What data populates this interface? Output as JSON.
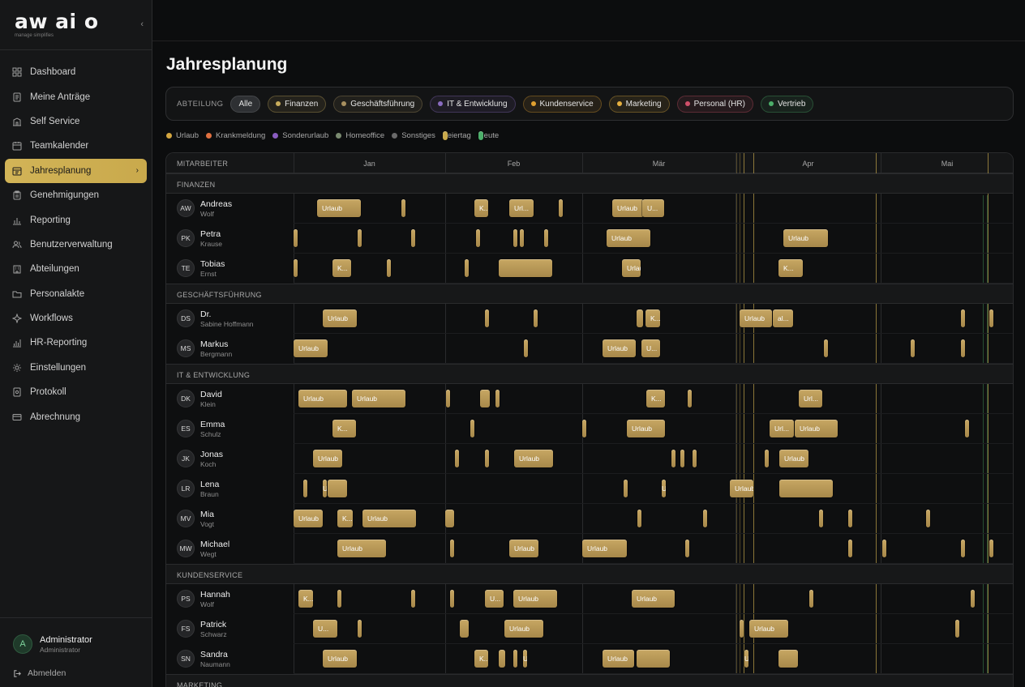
{
  "brand": {
    "logo": "aw ai o",
    "tagline": "manage simplifies"
  },
  "sidebar": {
    "items": [
      {
        "label": "Dashboard",
        "icon": "grid-icon"
      },
      {
        "label": "Meine Anträge",
        "icon": "document-icon"
      },
      {
        "label": "Self Service",
        "icon": "building-icon"
      },
      {
        "label": "Teamkalender",
        "icon": "calendar-icon"
      },
      {
        "label": "Jahresplanung",
        "icon": "calendar-check-icon",
        "active": true
      },
      {
        "label": "Genehmigungen",
        "icon": "clipboard-icon"
      },
      {
        "label": "Reporting",
        "icon": "bar-chart-icon"
      },
      {
        "label": "Benutzerverwaltung",
        "icon": "users-icon"
      },
      {
        "label": "Abteilungen",
        "icon": "office-icon"
      },
      {
        "label": "Personalakte",
        "icon": "folder-icon"
      },
      {
        "label": "Workflows",
        "icon": "workflow-icon"
      },
      {
        "label": "HR-Reporting",
        "icon": "chart-icon"
      },
      {
        "label": "Einstellungen",
        "icon": "gear-icon"
      },
      {
        "label": "Protokoll",
        "icon": "log-icon"
      },
      {
        "label": "Abrechnung",
        "icon": "card-icon"
      }
    ]
  },
  "user": {
    "initial": "A",
    "name": "Administrator",
    "role": "Administrator",
    "logout": "Abmelden"
  },
  "page": {
    "title": "Jahresplanung"
  },
  "filters": {
    "label": "ABTEILUNG",
    "chips": [
      {
        "label": "Alle",
        "color": null
      },
      {
        "label": "Finanzen",
        "color": "#c9ad5c"
      },
      {
        "label": "Geschäftsführung",
        "color": "#a89060"
      },
      {
        "label": "IT & Entwicklung",
        "color": "#8a6cc0"
      },
      {
        "label": "Kundenservice",
        "color": "#e0a030"
      },
      {
        "label": "Marketing",
        "color": "#e6b040"
      },
      {
        "label": "Personal (HR)",
        "color": "#d0506a"
      },
      {
        "label": "Vertrieb",
        "color": "#4caf6a"
      }
    ]
  },
  "legend": [
    {
      "label": "Urlaub",
      "color": "#d4a640",
      "kind": "dot"
    },
    {
      "label": "Krankmeldung",
      "color": "#e07040",
      "kind": "dot"
    },
    {
      "label": "Sonderurlaub",
      "color": "#8a5cc0",
      "kind": "dot"
    },
    {
      "label": "Homeoffice",
      "color": "#7a8a70",
      "kind": "dot"
    },
    {
      "label": "Sonstiges",
      "color": "#6a6a6a",
      "kind": "dot"
    },
    {
      "label": "Feiertag",
      "color": "#c9a94c",
      "kind": "bar"
    },
    {
      "label": "Heute",
      "color": "#4caf6a",
      "kind": "bar"
    }
  ],
  "grid": {
    "employee_header": "MITARBEITER",
    "months": [
      "Jan",
      "Feb",
      "Mär",
      "Apr",
      "Mai"
    ],
    "groups": [
      {
        "dept": "FINANZEN",
        "rows": [
          {
            "initials": "AW",
            "first": "Andreas",
            "last": "Wolf",
            "bars": [
              {
                "l": "Urlaub"
              },
              {
                "l": ""
              },
              {
                "l": "K..."
              },
              {
                "l": "Url..."
              },
              {
                "l": ""
              },
              {
                "l": "Urlaub"
              },
              {
                "l": "U..."
              },
              {
                "l": ""
              }
            ]
          },
          {
            "initials": "PK",
            "first": "Petra",
            "last": "Krause",
            "bars": [
              {
                "l": ""
              },
              {
                "l": ""
              },
              {
                "l": ""
              },
              {
                "l": ""
              },
              {
                "l": ""
              },
              {
                "l": ""
              },
              {
                "l": ""
              },
              {
                "l": "Urlaub"
              },
              {
                "l": "Urlaub"
              }
            ]
          },
          {
            "initials": "TE",
            "first": "Tobias",
            "last": "Ernst",
            "bars": [
              {
                "l": ""
              },
              {
                "l": "K..."
              },
              {
                "l": ""
              },
              {
                "l": ""
              },
              {
                "l": ""
              },
              {
                "l": "Urlaub"
              },
              {
                "l": "K..."
              },
              {
                "l": "Url..."
              }
            ]
          }
        ]
      },
      {
        "dept": "GESCHÄFTSFÜHRUNG",
        "rows": [
          {
            "initials": "DS",
            "first": "Dr.",
            "last": "Sabine Hoffmann",
            "bars": [
              {
                "l": "Urlaub"
              },
              {
                "l": ""
              },
              {
                "l": ""
              },
              {
                "l": ""
              },
              {
                "l": "K..."
              },
              {
                "l": "Urlaub"
              },
              {
                "l": "al..."
              },
              {
                "l": ""
              },
              {
                "l": ""
              }
            ]
          },
          {
            "initials": "MS",
            "first": "Markus",
            "last": "Bergmann",
            "bars": [
              {
                "l": "Urlaub"
              },
              {
                "l": ""
              },
              {
                "l": "Urlaub"
              },
              {
                "l": "U..."
              },
              {
                "l": ""
              },
              {
                "l": ""
              },
              {
                "l": ""
              }
            ]
          }
        ]
      },
      {
        "dept": "IT & ENTWICKLUNG",
        "rows": [
          {
            "initials": "DK",
            "first": "David",
            "last": "Klein",
            "bars": [
              {
                "l": "Urlaub"
              },
              {
                "l": "Urlaub"
              },
              {
                "l": ""
              },
              {
                "l": ""
              },
              {
                "l": ""
              },
              {
                "l": "K..."
              },
              {
                "l": ""
              },
              {
                "l": "Url..."
              }
            ]
          },
          {
            "initials": "ES",
            "first": "Emma",
            "last": "Schulz",
            "bars": [
              {
                "l": "K..."
              },
              {
                "l": ""
              },
              {
                "l": ""
              },
              {
                "l": "Urlaub"
              },
              {
                "l": "Url..."
              },
              {
                "l": "Urlaub"
              },
              {
                "l": ""
              }
            ]
          },
          {
            "initials": "JK",
            "first": "Jonas",
            "last": "Koch",
            "bars": [
              {
                "l": "Urlaub"
              },
              {
                "l": ""
              },
              {
                "l": ""
              },
              {
                "l": "Urlaub"
              },
              {
                "l": ""
              },
              {
                "l": ""
              },
              {
                "l": ""
              },
              {
                "l": ""
              },
              {
                "l": "Urlaub"
              }
            ]
          },
          {
            "initials": "LR",
            "first": "Lena",
            "last": "Braun",
            "bars": [
              {
                "l": ""
              },
              {
                "l": "U..."
              },
              {
                "l": ""
              },
              {
                "l": ""
              },
              {
                "l": "Url..."
              },
              {
                "l": "Urlaub"
              },
              {
                "l": ""
              }
            ]
          },
          {
            "initials": "MV",
            "first": "Mia",
            "last": "Vogt",
            "bars": [
              {
                "l": "Urlaub"
              },
              {
                "l": "K..."
              },
              {
                "l": "Urlaub"
              },
              {
                "l": ""
              },
              {
                "l": ""
              },
              {
                "l": ""
              },
              {
                "l": ""
              },
              {
                "l": ""
              },
              {
                "l": ""
              }
            ]
          },
          {
            "initials": "MW",
            "first": "Michael",
            "last": "Wegt",
            "bars": [
              {
                "l": "Urlaub"
              },
              {
                "l": ""
              },
              {
                "l": "Urlaub"
              },
              {
                "l": "Urlaub"
              },
              {
                "l": ""
              },
              {
                "l": ""
              },
              {
                "l": ""
              },
              {
                "l": ""
              },
              {
                "l": ""
              }
            ]
          }
        ]
      },
      {
        "dept": "KUNDENSERVICE",
        "rows": [
          {
            "initials": "PS",
            "first": "Hannah",
            "last": "Wolf",
            "bars": [
              {
                "l": "K..."
              },
              {
                "l": ""
              },
              {
                "l": ""
              },
              {
                "l": ""
              },
              {
                "l": "U..."
              },
              {
                "l": "Urlaub"
              },
              {
                "l": "Urlaub"
              },
              {
                "l": ""
              },
              {
                "l": ""
              }
            ]
          },
          {
            "initials": "FS",
            "first": "Patrick",
            "last": "Schwarz",
            "bars": [
              {
                "l": "U..."
              },
              {
                "l": ""
              },
              {
                "l": ""
              },
              {
                "l": "Urlaub"
              },
              {
                "l": ""
              },
              {
                "l": "Urlaub"
              },
              {
                "l": ""
              }
            ]
          },
          {
            "initials": "SN",
            "first": "Sandra",
            "last": "Naumann",
            "bars": [
              {
                "l": "Urlaub"
              },
              {
                "l": "K..."
              },
              {
                "l": ""
              },
              {
                "l": ""
              },
              {
                "l": "Urlaub"
              },
              {
                "l": "Urlaub"
              },
              {
                "l": ""
              },
              {
                "l": "U..."
              },
              {
                "l": ""
              }
            ]
          }
        ]
      },
      {
        "dept": "MARKETING",
        "rows": []
      }
    ]
  }
}
